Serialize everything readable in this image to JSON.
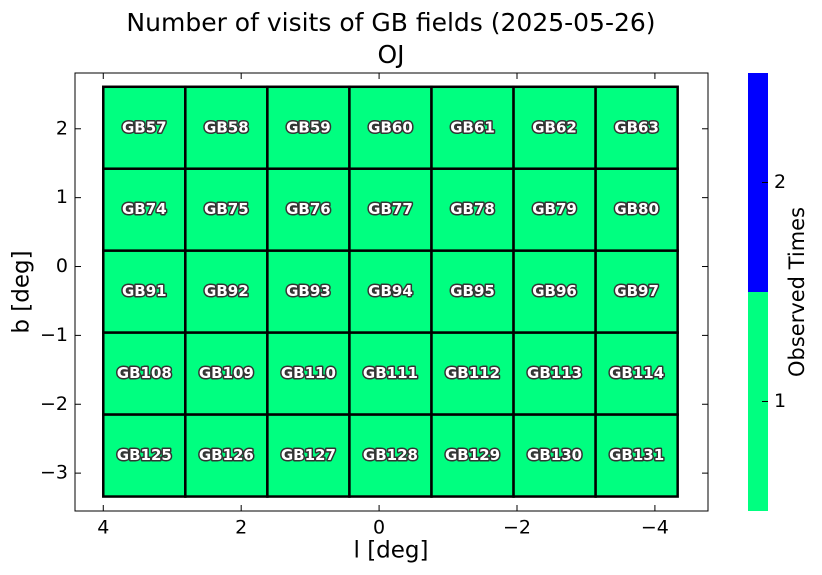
{
  "chart_data": {
    "type": "field-grid",
    "title": "Number of visits of GB fields (2025-05-26)",
    "subtitle": "OJ",
    "xlabel": "l [deg]",
    "ylabel": "b [deg]",
    "xlim": [
      4.41,
      -4.77
    ],
    "ylim": [
      -3.55,
      2.81
    ],
    "xticks": [
      4,
      2,
      0,
      {
        "value": -2,
        "label": "−2"
      },
      {
        "value": -4,
        "label": "−4"
      }
    ],
    "yticks": [
      2,
      1,
      0,
      {
        "value": -1,
        "label": "−1"
      },
      {
        "value": -2,
        "label": "−2"
      },
      {
        "value": -3,
        "label": "−3"
      }
    ],
    "x_edges": [
      4.0,
      2.81,
      1.62,
      0.43,
      -0.76,
      -1.95,
      -3.14,
      -4.33
    ],
    "y_edges": [
      2.61,
      1.42,
      0.23,
      -0.96,
      -2.15,
      -3.34
    ],
    "cells": [
      [
        "GB57",
        "GB58",
        "GB59",
        "GB60",
        "GB61",
        "GB62",
        "GB63"
      ],
      [
        "GB74",
        "GB75",
        "GB76",
        "GB77",
        "GB78",
        "GB79",
        "GB80"
      ],
      [
        "GB91",
        "GB92",
        "GB93",
        "GB94",
        "GB95",
        "GB96",
        "GB97"
      ],
      [
        "GB108",
        "GB109",
        "GB110",
        "GB111",
        "GB112",
        "GB113",
        "GB114"
      ],
      [
        "GB125",
        "GB126",
        "GB127",
        "GB128",
        "GB129",
        "GB130",
        "GB131"
      ]
    ],
    "values": [
      [
        1,
        1,
        1,
        1,
        1,
        1,
        1
      ],
      [
        1,
        1,
        1,
        1,
        1,
        1,
        1
      ],
      [
        1,
        1,
        1,
        1,
        1,
        1,
        1
      ],
      [
        1,
        1,
        1,
        1,
        1,
        1,
        1
      ],
      [
        1,
        1,
        1,
        1,
        1,
        1,
        1
      ]
    ],
    "colorbar": {
      "label": "Observed Times",
      "lim": [
        0.5,
        2.5
      ],
      "ticks": [
        1,
        2
      ],
      "colors": [
        "#00ff80",
        "#0000ff"
      ]
    }
  }
}
